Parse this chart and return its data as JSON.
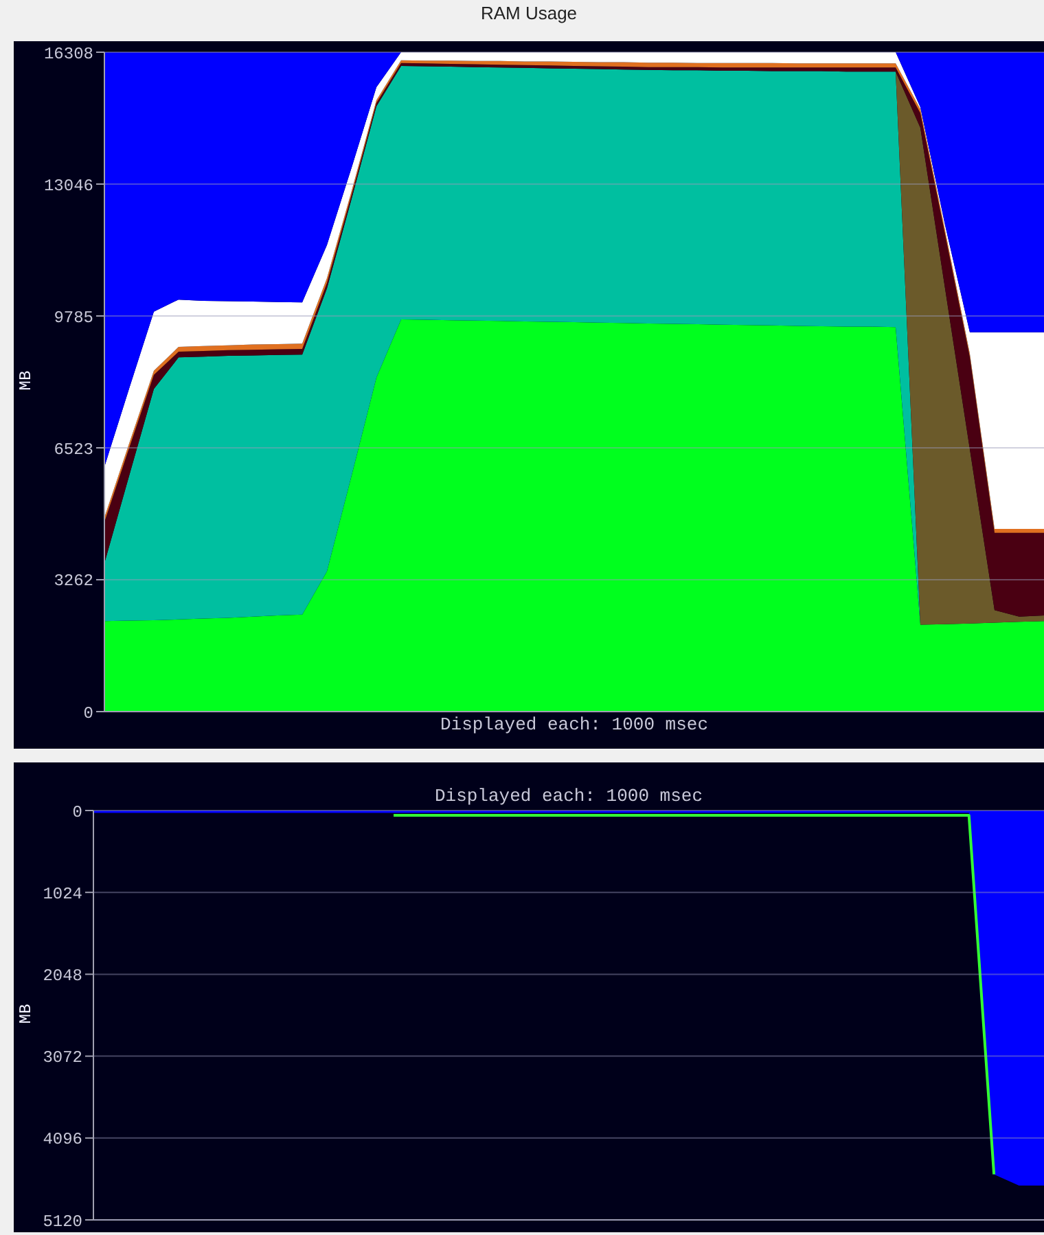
{
  "chart_data": [
    {
      "type": "area",
      "title": "RAM Usage",
      "ylabel": "MB",
      "stacked": true,
      "tick_labels": "y",
      "grid": "y",
      "annotations": [
        "Displayed each: 1000 msec"
      ],
      "categories": [
        null,
        null,
        null,
        null,
        null,
        null,
        null,
        null,
        null,
        null,
        null,
        null,
        null,
        null,
        null,
        null,
        null,
        null,
        null,
        null,
        null,
        null,
        null,
        null,
        null,
        null,
        null,
        null,
        null,
        null,
        null,
        null,
        null,
        null,
        null,
        null,
        null,
        null,
        null
      ],
      "ylim": [
        0,
        16308
      ],
      "yticks": [
        0,
        3262,
        6523,
        9785,
        13046,
        16308
      ],
      "series": [
        {
          "color": "#00ff1e",
          "values": [
            2240,
            2250,
            2260,
            2280,
            2300,
            2320,
            2350,
            2380,
            2400,
            3470,
            5850,
            8260,
            9700,
            9690,
            9680,
            9670,
            9660,
            9650,
            9640,
            9630,
            9620,
            9610,
            9600,
            9590,
            9580,
            9570,
            9560,
            9550,
            9540,
            9530,
            9520,
            9520,
            9510,
            2150,
            2160,
            2180,
            2200,
            2220,
            2240
          ]
        },
        {
          "color": "#00bfa0",
          "values": [
            1430,
            3580,
            5720,
            6480,
            6480,
            6480,
            6460,
            6440,
            6430,
            7000,
            6840,
            6710,
            6270,
            6270,
            6270,
            6270,
            6270,
            6270,
            6270,
            6270,
            6270,
            6270,
            6270,
            6270,
            6280,
            6280,
            6290,
            6290,
            6300,
            6310,
            6310,
            6310,
            6320,
            0,
            null,
            null,
            null,
            null,
            null
          ]
        },
        {
          "color": "#6b5a2a",
          "values": [
            null,
            null,
            null,
            null,
            null,
            null,
            null,
            null,
            null,
            null,
            null,
            null,
            null,
            null,
            null,
            null,
            null,
            null,
            null,
            null,
            null,
            null,
            null,
            null,
            null,
            null,
            null,
            null,
            null,
            null,
            null,
            null,
            0,
            12290,
            8300,
            4310,
            310,
            130,
            140
          ]
        },
        {
          "color": "#4a0012",
          "values": [
            1020,
            690,
            350,
            140,
            140,
            140,
            140,
            140,
            140,
            130,
            100,
            80,
            70,
            70,
            70,
            70,
            70,
            70,
            70,
            70,
            70,
            70,
            70,
            80,
            80,
            80,
            80,
            90,
            90,
            90,
            100,
            100,
            100,
            360,
            1340,
            2280,
            1910,
            2070,
            2040
          ]
        },
        {
          "color": "#e07020",
          "values": [
            110,
            110,
            100,
            120,
            120,
            120,
            130,
            130,
            130,
            120,
            90,
            70,
            70,
            70,
            80,
            80,
            90,
            90,
            100,
            100,
            100,
            110,
            110,
            110,
            100,
            110,
            110,
            110,
            100,
            100,
            100,
            100,
            100,
            100,
            100,
            80,
            100,
            100,
            100
          ]
        },
        {
          "color": "#ffffff",
          "values": [
            1250,
            1360,
            1460,
            1170,
            1120,
            1090,
            1060,
            1040,
            1020,
            820,
            580,
            320,
            200,
            210,
            210,
            220,
            220,
            230,
            230,
            240,
            250,
            250,
            260,
            260,
            270,
            270,
            270,
            270,
            280,
            280,
            280,
            280,
            280,
            50,
            130,
            530,
            4860,
            4860,
            4860
          ]
        },
        {
          "color": "#0000ff",
          "values": [
            10260,
            8330,
            6420,
            6120,
            6150,
            6160,
            6170,
            6180,
            6190,
            4770,
            2850,
            870,
            0,
            null,
            null,
            null,
            null,
            null,
            null,
            null,
            null,
            null,
            null,
            null,
            null,
            null,
            null,
            null,
            null,
            null,
            null,
            null,
            0,
            1360,
            4280,
            6930,
            6930,
            6930,
            6930
          ]
        }
      ]
    },
    {
      "type": "area",
      "ylabel": "MB",
      "tick_labels": "y",
      "grid": "y",
      "annotations": [
        "Displayed each: 1000 msec"
      ],
      "categories": [
        null,
        null,
        null,
        null,
        null,
        null,
        null,
        null,
        null,
        null,
        null,
        null,
        null,
        null,
        null,
        null,
        null,
        null,
        null,
        null,
        null,
        null,
        null,
        null,
        null,
        null,
        null,
        null,
        null,
        null,
        null,
        null,
        null,
        null,
        null,
        null,
        null,
        null,
        null
      ],
      "ylim": [
        5120,
        0
      ],
      "yticks": [
        0,
        1024,
        2048,
        3072,
        4096,
        5120
      ],
      "series": [
        {
          "color": "#0000ff",
          "values": [
            30,
            30,
            30,
            30,
            30,
            30,
            30,
            30,
            30,
            30,
            30,
            30,
            30,
            30,
            30,
            30,
            30,
            30,
            30,
            30,
            30,
            30,
            30,
            30,
            30,
            30,
            30,
            30,
            30,
            30,
            30,
            30,
            30,
            30,
            30,
            30,
            4550,
            4690,
            4690
          ]
        },
        {
          "type": "line",
          "color": "#33ff33",
          "values": [
            null,
            null,
            null,
            null,
            null,
            null,
            null,
            null,
            null,
            null,
            null,
            null,
            60,
            60,
            60,
            60,
            60,
            60,
            60,
            60,
            60,
            60,
            60,
            60,
            60,
            60,
            60,
            60,
            60,
            60,
            60,
            60,
            60,
            60,
            60,
            60,
            4550,
            null,
            null
          ]
        }
      ]
    }
  ]
}
